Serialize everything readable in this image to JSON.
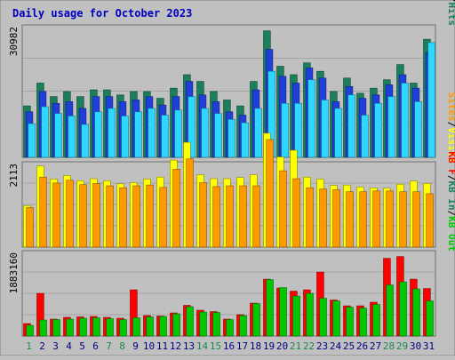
{
  "chart_data": {
    "type": "bar",
    "title": "Daily usage for October 2023",
    "x": [
      "1",
      "2",
      "3",
      "4",
      "5",
      "6",
      "7",
      "8",
      "9",
      "10",
      "11",
      "12",
      "13",
      "14",
      "15",
      "16",
      "17",
      "18",
      "19",
      "20",
      "21",
      "22",
      "23",
      "24",
      "25",
      "26",
      "27",
      "28",
      "29",
      "30",
      "31"
    ],
    "weekend_days": [
      "1",
      "7",
      "8",
      "14",
      "15",
      "21",
      "22",
      "28",
      "29"
    ],
    "panels": [
      {
        "name": "hits-files-pages",
        "y_tick_label": "30982",
        "y_max": 30982,
        "legend": [
          "Pages",
          "Files",
          "Hits"
        ],
        "series": [
          {
            "name": "Hits",
            "color": "#1a7f5a",
            "values": [
              12200,
              17600,
              14400,
              15600,
              14400,
              16000,
              16000,
              14800,
              15600,
              15600,
              14000,
              16400,
              19600,
              18000,
              15600,
              13600,
              12200,
              18000,
              30000,
              21600,
              19600,
              22400,
              20400,
              15600,
              18800,
              15200,
              16400,
              18400,
              22000,
              17600,
              28000
            ]
          },
          {
            "name": "Files",
            "color": "#1f3fd8",
            "values": [
              10800,
              15600,
              12800,
              13200,
              11600,
              14400,
              14400,
              13200,
              13600,
              14400,
              12400,
              14400,
              18000,
              14800,
              13200,
              10800,
              10000,
              16000,
              25600,
              19200,
              17600,
              21200,
              18800,
              13200,
              16800,
              14000,
              14800,
              17200,
              19600,
              16400,
              24800
            ]
          },
          {
            "name": "Pages",
            "color": "#2dd7ff",
            "values": [
              8000,
              12000,
              10400,
              9800,
              7800,
              10800,
              11600,
              9800,
              10800,
              11600,
              10000,
              11200,
              14400,
              11600,
              10400,
              9000,
              8200,
              11600,
              20400,
              12800,
              12800,
              18400,
              13600,
              11600,
              14800,
              10000,
              12800,
              14400,
              17600,
              13200,
              27200
            ]
          }
        ]
      },
      {
        "name": "visits-sites",
        "y_tick_label": "2113",
        "y_max": 2113,
        "legend": [
          "Sites",
          "Visits"
        ],
        "series": [
          {
            "name": "Visits",
            "color": "#ffff00",
            "values": [
              1050,
              2050,
              1720,
              1810,
              1680,
              1730,
              1680,
              1600,
              1630,
              1720,
              1770,
              2200,
              2650,
              1830,
              1730,
              1730,
              1760,
              1830,
              2880,
              2280,
              2450,
              1770,
              1720,
              1560,
              1570,
              1520,
              1500,
              1490,
              1590,
              1670,
              1610
            ]
          },
          {
            "name": "Sites",
            "color": "#ff9900",
            "values": [
              1000,
              1770,
              1620,
              1690,
              1580,
              1610,
              1550,
              1500,
              1550,
              1570,
              1510,
              1970,
              2230,
              1630,
              1530,
              1550,
              1550,
              1550,
              2720,
              1930,
              1730,
              1500,
              1470,
              1450,
              1400,
              1400,
              1420,
              1420,
              1400,
              1400,
              1350
            ]
          }
        ]
      },
      {
        "name": "kb",
        "y_tick_label": "1883160",
        "y_max": 1883160,
        "legend": [
          "KB F",
          "KB In",
          "KB Out"
        ],
        "series": [
          {
            "name": "KB F",
            "color": "#ff0000",
            "values": [
              280000,
              960000,
              380000,
              420000,
              430000,
              440000,
              420000,
              400000,
              1040000,
              460000,
              450000,
              520000,
              690000,
              580000,
              550000,
              380000,
              480000,
              740000,
              1280000,
              1080000,
              1010000,
              1040000,
              1440000,
              810000,
              680000,
              680000,
              760000,
              1750000,
              1790000,
              1280000,
              1070000
            ]
          },
          {
            "name": "KB Out",
            "color": "#00c800",
            "values": [
              240000,
              360000,
              370000,
              380000,
              400000,
              410000,
              390000,
              370000,
              410000,
              430000,
              440000,
              500000,
              660000,
              540000,
              530000,
              370000,
              460000,
              730000,
              1270000,
              1090000,
              900000,
              960000,
              850000,
              790000,
              650000,
              630000,
              710000,
              1150000,
              1220000,
              1060000,
              790000
            ]
          }
        ]
      }
    ],
    "legend_separator": "/"
  }
}
